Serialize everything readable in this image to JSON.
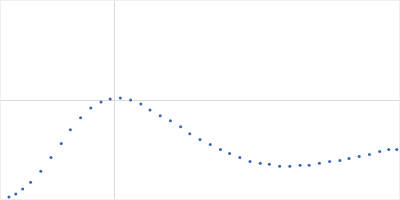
{
  "chart_data": {
    "type": "scatter",
    "color": "#3a66b0",
    "marker": "circle",
    "grid": true,
    "tick_labels": false,
    "xlim": [
      0,
      3.5
    ],
    "xticks": [
      1
    ],
    "ylim": [
      0,
      2
    ],
    "yticks": [
      1
    ],
    "x": [
      0.07,
      0.13,
      0.19,
      0.26,
      0.35,
      0.44,
      0.53,
      0.61,
      0.7,
      0.79,
      0.88,
      0.96,
      1.05,
      1.14,
      1.23,
      1.31,
      1.4,
      1.49,
      1.58,
      1.66,
      1.75,
      1.84,
      1.93,
      2.01,
      2.1,
      2.19,
      2.28,
      2.36,
      2.45,
      2.54,
      2.63,
      2.71,
      2.8,
      2.89,
      2.98,
      3.06,
      3.15,
      3.24,
      3.33,
      3.41,
      3.48
    ],
    "values": [
      0.02,
      0.05,
      0.1,
      0.17,
      0.28,
      0.42,
      0.56,
      0.7,
      0.82,
      0.92,
      0.98,
      1.01,
      1.02,
      1.0,
      0.96,
      0.9,
      0.84,
      0.79,
      0.73,
      0.66,
      0.6,
      0.55,
      0.5,
      0.46,
      0.42,
      0.38,
      0.36,
      0.35,
      0.33,
      0.33,
      0.34,
      0.34,
      0.36,
      0.38,
      0.39,
      0.41,
      0.43,
      0.45,
      0.48,
      0.5,
      0.5
    ]
  }
}
